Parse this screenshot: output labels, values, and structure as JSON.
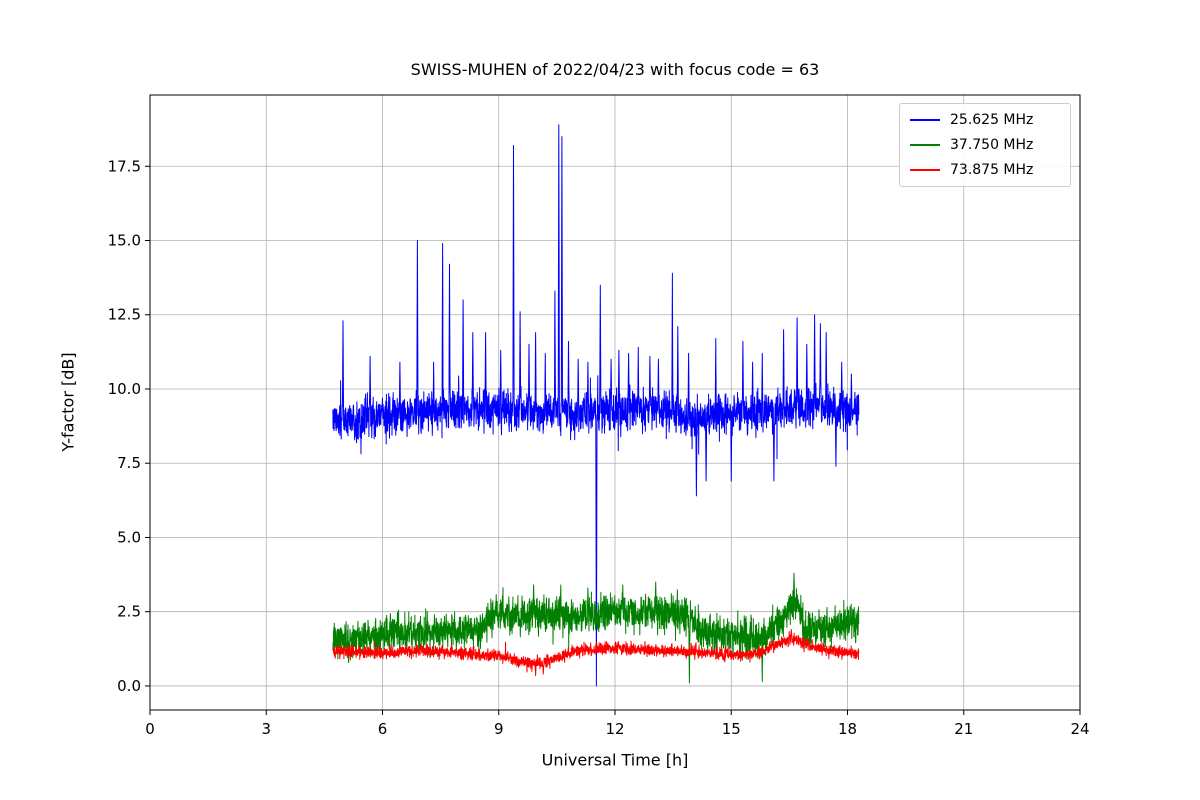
{
  "chart_data": {
    "type": "line",
    "title": "SWISS-MUHEN of 2022/04/23 with focus code = 63",
    "xlabel": "Universal Time [h]",
    "ylabel": "Y-factor [dB]",
    "xlim": [
      0,
      24
    ],
    "ylim": [
      -0.81,
      19.9
    ],
    "xticks": [
      0,
      3,
      6,
      9,
      12,
      15,
      18,
      21,
      24
    ],
    "xtick_labels": [
      "0",
      "3",
      "6",
      "9",
      "12",
      "15",
      "18",
      "21",
      "24"
    ],
    "yticks": [
      0,
      2.5,
      5,
      7.5,
      10,
      12.5,
      15,
      17.5
    ],
    "ytick_labels": [
      "0.0",
      "2.5",
      "5.0",
      "7.5",
      "10.0",
      "12.5",
      "15.0",
      "17.5"
    ],
    "grid": true,
    "grid_color": "#b0b0b0",
    "legend_position": "upper right",
    "x_start": 4.72,
    "x_end": 18.3,
    "sample_step": 0.005,
    "series": [
      {
        "name": "25.625 MHz",
        "color": "#0000ff",
        "noise_sigma": 0.55,
        "burst_prob": 0.035,
        "burst_scale": 2.0,
        "baseline": [
          [
            4.72,
            8.95
          ],
          [
            6,
            9.05
          ],
          [
            7,
            9.2
          ],
          [
            8,
            9.3
          ],
          [
            9,
            9.3
          ],
          [
            10,
            9.2
          ],
          [
            11,
            9.1
          ],
          [
            12,
            9.35
          ],
          [
            13,
            9.35
          ],
          [
            14,
            9.0
          ],
          [
            15,
            9.15
          ],
          [
            16,
            9.25
          ],
          [
            17,
            9.45
          ],
          [
            18.3,
            9.2
          ]
        ],
        "spikes": [
          [
            4.98,
            12.3
          ],
          [
            5.68,
            11.1
          ],
          [
            6.45,
            10.9
          ],
          [
            6.9,
            15.0
          ],
          [
            7.32,
            10.9
          ],
          [
            7.55,
            14.9
          ],
          [
            7.73,
            14.2
          ],
          [
            8.08,
            13.0
          ],
          [
            8.33,
            11.9
          ],
          [
            8.66,
            11.9
          ],
          [
            9.05,
            11.3
          ],
          [
            9.38,
            18.2
          ],
          [
            9.55,
            12.6
          ],
          [
            9.78,
            11.5
          ],
          [
            9.95,
            11.9
          ],
          [
            10.2,
            11.2
          ],
          [
            10.45,
            13.3
          ],
          [
            10.55,
            18.9
          ],
          [
            10.63,
            18.5
          ],
          [
            10.8,
            11.6
          ],
          [
            11.05,
            11.0
          ],
          [
            11.3,
            10.9
          ],
          [
            11.52,
            0.0
          ],
          [
            11.62,
            13.5
          ],
          [
            11.9,
            11.0
          ],
          [
            12.1,
            11.3
          ],
          [
            12.35,
            11.2
          ],
          [
            12.6,
            11.4
          ],
          [
            12.9,
            11.1
          ],
          [
            13.12,
            11.0
          ],
          [
            13.48,
            13.9
          ],
          [
            13.62,
            12.1
          ],
          [
            13.9,
            11.2
          ],
          [
            14.1,
            6.4
          ],
          [
            14.35,
            6.9
          ],
          [
            14.6,
            11.7
          ],
          [
            15.0,
            6.9
          ],
          [
            15.3,
            11.6
          ],
          [
            15.55,
            10.9
          ],
          [
            15.8,
            11.2
          ],
          [
            16.1,
            6.9
          ],
          [
            16.35,
            12.0
          ],
          [
            16.7,
            12.4
          ],
          [
            16.95,
            11.5
          ],
          [
            17.15,
            12.5
          ],
          [
            17.3,
            12.2
          ],
          [
            17.45,
            11.9
          ],
          [
            17.7,
            7.4
          ],
          [
            17.85,
            10.9
          ],
          [
            18.1,
            10.5
          ]
        ]
      },
      {
        "name": "37.750 MHz",
        "color": "#008000",
        "noise_sigma": 0.5,
        "burst_prob": 0.02,
        "burst_scale": 1.6,
        "clamp_min": 0.02,
        "baseline": [
          [
            4.72,
            1.5
          ],
          [
            5.5,
            1.6
          ],
          [
            6.5,
            1.8
          ],
          [
            7.5,
            1.8
          ],
          [
            8.5,
            1.9
          ],
          [
            8.9,
            2.4
          ],
          [
            10,
            2.45
          ],
          [
            11,
            2.35
          ],
          [
            12,
            2.45
          ],
          [
            13,
            2.5
          ],
          [
            13.8,
            2.35
          ],
          [
            14.2,
            1.8
          ],
          [
            15,
            1.7
          ],
          [
            15.9,
            1.6
          ],
          [
            16.4,
            2.5
          ],
          [
            16.65,
            2.9
          ],
          [
            16.9,
            1.9
          ],
          [
            17.5,
            2.0
          ],
          [
            18.3,
            2.1
          ]
        ],
        "spikes": [
          [
            9.9,
            3.4
          ],
          [
            10.6,
            3.4
          ],
          [
            11.3,
            3.3
          ],
          [
            12.2,
            3.4
          ],
          [
            13.05,
            3.5
          ],
          [
            13.92,
            0.1
          ],
          [
            15.8,
            0.15
          ],
          [
            16.62,
            3.8
          ]
        ]
      },
      {
        "name": "73.875 MHz",
        "color": "#ff0000",
        "noise_sigma": 0.17,
        "burst_prob": 0.02,
        "burst_scale": 1.8,
        "clamp_min": 0.05,
        "baseline": [
          [
            4.72,
            1.2
          ],
          [
            6,
            1.1
          ],
          [
            7,
            1.2
          ],
          [
            8,
            1.1
          ],
          [
            9,
            1.0
          ],
          [
            9.8,
            0.75
          ],
          [
            10.3,
            0.85
          ],
          [
            11,
            1.2
          ],
          [
            12,
            1.25
          ],
          [
            13,
            1.2
          ],
          [
            14,
            1.15
          ],
          [
            15,
            1.05
          ],
          [
            15.7,
            1.1
          ],
          [
            16.2,
            1.4
          ],
          [
            16.55,
            1.65
          ],
          [
            17,
            1.35
          ],
          [
            17.5,
            1.2
          ],
          [
            18.3,
            1.1
          ]
        ],
        "spikes": [
          [
            9.95,
            0.35
          ],
          [
            10.15,
            0.4
          ],
          [
            16.55,
            1.9
          ]
        ]
      }
    ]
  }
}
